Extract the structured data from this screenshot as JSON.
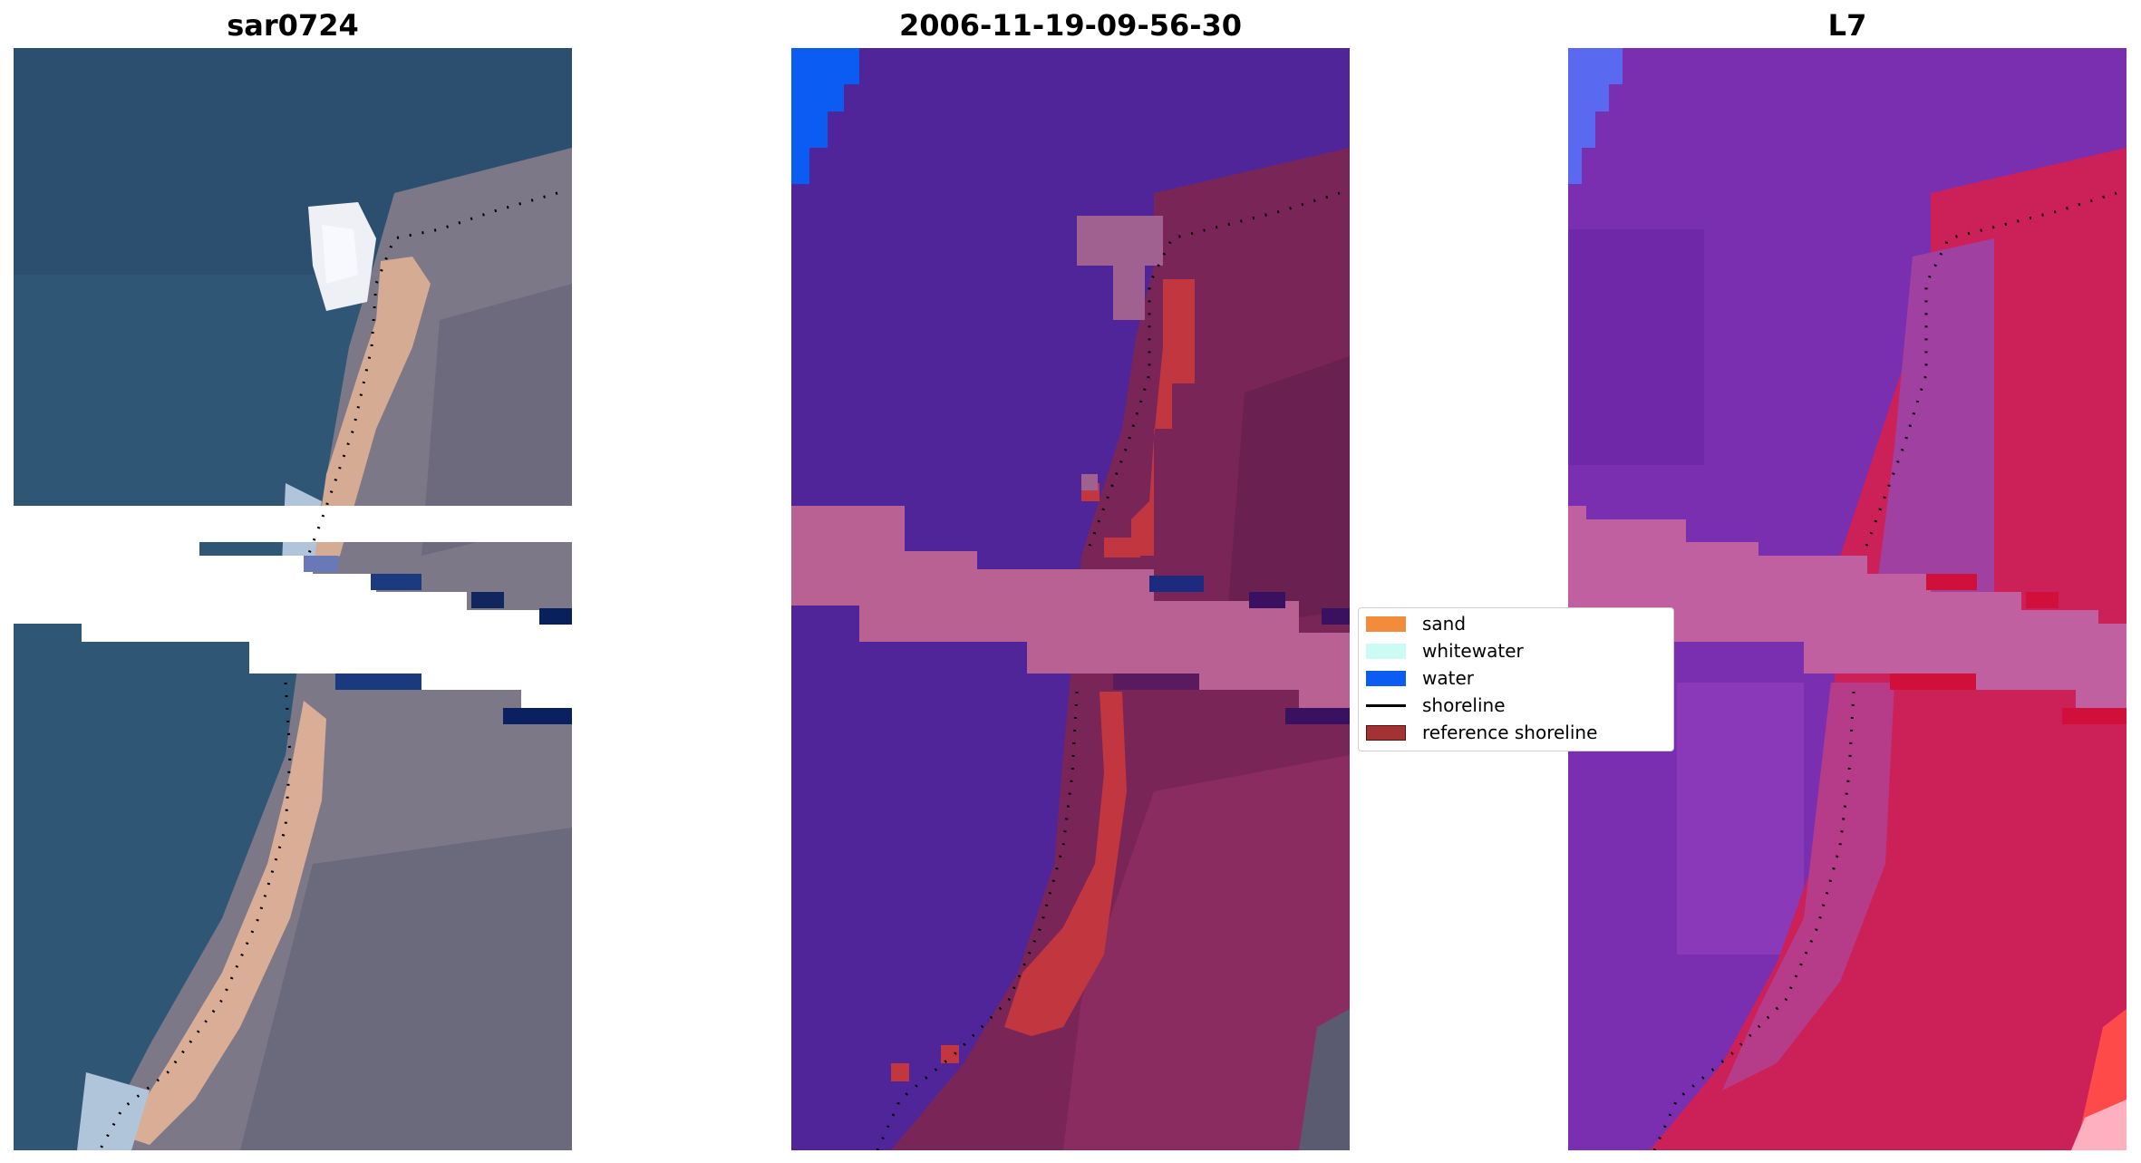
{
  "panels": [
    {
      "title": "sar0724"
    },
    {
      "title": "2006-11-19-09-56-30"
    },
    {
      "title": "L7"
    }
  ],
  "legend": {
    "items": [
      {
        "label": "sand",
        "color": "#f28c3a",
        "kind": "patch"
      },
      {
        "label": "whitewater",
        "color": "#ccfbf5",
        "kind": "patch"
      },
      {
        "label": "water",
        "color": "#0a5cf2",
        "kind": "patch"
      },
      {
        "label": "shoreline",
        "color": "#000000",
        "kind": "line"
      },
      {
        "label": "reference shoreline",
        "color": "#a33232",
        "kind": "patch"
      }
    ]
  },
  "colors": {
    "rgb_water": "#2f5675",
    "rgb_land": "#7d7a8a",
    "rgb_sand": "#d9ad96",
    "class_water_bg": "#51259a",
    "class_land": "#7a2558",
    "class_nodata_band": "#b96193",
    "class_sand_pixels": "#c2363f",
    "ir_water": "#7a2fb0",
    "ir_land": "#cc2058",
    "ir_nodata_band": "#c060a0",
    "shoreline": "#000000"
  }
}
